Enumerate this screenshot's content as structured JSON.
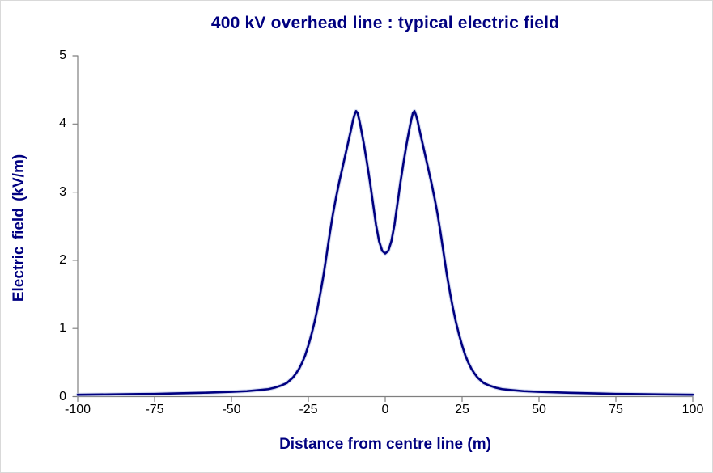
{
  "page": {
    "background": "#ffffff",
    "border_color": "#d9d9d9"
  },
  "chart_data": {
    "type": "line",
    "title": "400 kV overhead line : typical electric field",
    "xlabel": "Distance from centre line (m)",
    "ylabel": "Electric field (kV/m)",
    "xlim": [
      -100,
      100
    ],
    "ylim": [
      0,
      5
    ],
    "x_ticks": [
      -100,
      -75,
      -50,
      -25,
      0,
      25,
      50,
      75,
      100
    ],
    "y_ticks": [
      0,
      1,
      2,
      3,
      4,
      5
    ],
    "grid": false,
    "legend": "none",
    "title_color": "#000080",
    "axis_label_color": "#000080",
    "tick_label_color": "#000000",
    "axis_color": "#7f7f7f",
    "features": {
      "peak_value_kv_per_m": 4.19,
      "peak_positions_m": [
        -9,
        9
      ],
      "centre_dip_value_kv_per_m": 2.1,
      "centre_dip_position_m": 0
    },
    "series": [
      {
        "name": "electric-field-profile",
        "color": "#000080",
        "halo_color": "#b7c1e6",
        "width": 2.6,
        "points": [
          [
            -100,
            0.028
          ],
          [
            -90,
            0.032
          ],
          [
            -80,
            0.038
          ],
          [
            -75,
            0.04
          ],
          [
            -70,
            0.045
          ],
          [
            -60,
            0.055
          ],
          [
            -50,
            0.07
          ],
          [
            -45,
            0.08
          ],
          [
            -40,
            0.1
          ],
          [
            -38,
            0.11
          ],
          [
            -36,
            0.13
          ],
          [
            -34,
            0.16
          ],
          [
            -32,
            0.2
          ],
          [
            -30,
            0.28
          ],
          [
            -29,
            0.34
          ],
          [
            -28,
            0.41
          ],
          [
            -27,
            0.5
          ],
          [
            -26,
            0.61
          ],
          [
            -25,
            0.75
          ],
          [
            -24,
            0.91
          ],
          [
            -23,
            1.09
          ],
          [
            -22,
            1.3
          ],
          [
            -21,
            1.54
          ],
          [
            -20,
            1.8
          ],
          [
            -19,
            2.1
          ],
          [
            -18,
            2.4
          ],
          [
            -17,
            2.68
          ],
          [
            -16,
            2.92
          ],
          [
            -15,
            3.14
          ],
          [
            -14,
            3.34
          ],
          [
            -13,
            3.54
          ],
          [
            -12,
            3.74
          ],
          [
            -11,
            3.94
          ],
          [
            -10.5,
            4.05
          ],
          [
            -10,
            4.13
          ],
          [
            -9.5,
            4.19
          ],
          [
            -9,
            4.16
          ],
          [
            -8.5,
            4.07
          ],
          [
            -8,
            3.96
          ],
          [
            -7,
            3.72
          ],
          [
            -6,
            3.45
          ],
          [
            -5,
            3.16
          ],
          [
            -4,
            2.84
          ],
          [
            -3,
            2.52
          ],
          [
            -2,
            2.28
          ],
          [
            -1,
            2.14
          ],
          [
            0,
            2.1
          ],
          [
            1,
            2.14
          ],
          [
            2,
            2.28
          ],
          [
            3,
            2.52
          ],
          [
            4,
            2.84
          ],
          [
            5,
            3.16
          ],
          [
            6,
            3.45
          ],
          [
            7,
            3.72
          ],
          [
            8,
            3.96
          ],
          [
            8.5,
            4.07
          ],
          [
            9,
            4.16
          ],
          [
            9.5,
            4.19
          ],
          [
            10,
            4.13
          ],
          [
            10.5,
            4.05
          ],
          [
            11,
            3.94
          ],
          [
            12,
            3.74
          ],
          [
            13,
            3.54
          ],
          [
            14,
            3.34
          ],
          [
            15,
            3.14
          ],
          [
            16,
            2.92
          ],
          [
            17,
            2.68
          ],
          [
            18,
            2.4
          ],
          [
            19,
            2.1
          ],
          [
            20,
            1.8
          ],
          [
            21,
            1.54
          ],
          [
            22,
            1.3
          ],
          [
            23,
            1.09
          ],
          [
            24,
            0.91
          ],
          [
            25,
            0.75
          ],
          [
            26,
            0.61
          ],
          [
            27,
            0.5
          ],
          [
            28,
            0.41
          ],
          [
            29,
            0.34
          ],
          [
            30,
            0.28
          ],
          [
            32,
            0.2
          ],
          [
            34,
            0.16
          ],
          [
            36,
            0.13
          ],
          [
            38,
            0.11
          ],
          [
            40,
            0.1
          ],
          [
            45,
            0.08
          ],
          [
            50,
            0.07
          ],
          [
            60,
            0.055
          ],
          [
            70,
            0.045
          ],
          [
            75,
            0.04
          ],
          [
            80,
            0.038
          ],
          [
            90,
            0.032
          ],
          [
            100,
            0.028
          ]
        ]
      }
    ]
  }
}
